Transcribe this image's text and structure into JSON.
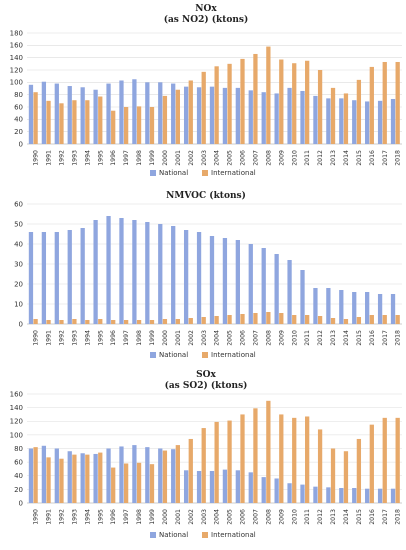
{
  "chart_data": [
    {
      "type": "bar",
      "title": "NOx",
      "subtitle": "(as NO2) (ktons)",
      "xlabel": "",
      "ylabel": "",
      "ylim": [
        0,
        180
      ],
      "yticks": [
        0,
        20,
        40,
        60,
        80,
        100,
        120,
        140,
        160,
        180
      ],
      "grid": true,
      "legend": "bottom",
      "categories": [
        "1990",
        "1991",
        "1992",
        "1993",
        "1994",
        "1995",
        "1996",
        "1997",
        "1998",
        "1999",
        "2000",
        "2001",
        "2002",
        "2003",
        "2004",
        "2005",
        "2006",
        "2007",
        "2008",
        "2009",
        "2010",
        "2011",
        "2012",
        "2013",
        "2014",
        "2015",
        "2016",
        "2017",
        "2018"
      ],
      "series": [
        {
          "name": "National",
          "color": "#8fa6df",
          "values": [
            96,
            101,
            98,
            94,
            92,
            88,
            98,
            103,
            105,
            100,
            100,
            98,
            93,
            92,
            93,
            91,
            91,
            87,
            84,
            82,
            91,
            86,
            78,
            74,
            74,
            71,
            69,
            70,
            73
          ]
        },
        {
          "name": "International",
          "color": "#e7a96a",
          "values": [
            84,
            70,
            66,
            71,
            71,
            77,
            54,
            60,
            61,
            60,
            78,
            88,
            103,
            117,
            126,
            130,
            138,
            146,
            158,
            137,
            131,
            135,
            120,
            91,
            82,
            104,
            125,
            133,
            133
          ]
        }
      ]
    },
    {
      "type": "bar",
      "title": "NMVOC (ktons)",
      "subtitle": "",
      "xlabel": "",
      "ylabel": "",
      "ylim": [
        0,
        60
      ],
      "yticks": [
        0,
        10,
        20,
        30,
        40,
        50,
        60
      ],
      "grid": true,
      "legend": "bottom",
      "categories": [
        "1990",
        "1991",
        "1992",
        "1993",
        "1994",
        "1995",
        "1996",
        "1997",
        "1998",
        "1999",
        "2000",
        "2001",
        "2002",
        "2003",
        "2004",
        "2005",
        "2006",
        "2007",
        "2008",
        "2009",
        "2010",
        "2011",
        "2012",
        "2013",
        "2014",
        "2015",
        "2016",
        "2017",
        "2018"
      ],
      "series": [
        {
          "name": "National",
          "color": "#8fa6df",
          "values": [
            46,
            46,
            46,
            47,
            48,
            52,
            54,
            53,
            52,
            51,
            50,
            49,
            47,
            46,
            44,
            43,
            42,
            40,
            38,
            35,
            32,
            27,
            18,
            18,
            17,
            16,
            16,
            15,
            15
          ]
        },
        {
          "name": "International",
          "color": "#e7a96a",
          "values": [
            2.5,
            2,
            2,
            2.5,
            2,
            2.5,
            2,
            2,
            2,
            2,
            2.5,
            2.5,
            3,
            3.5,
            4,
            4.5,
            5,
            5.5,
            6,
            5.5,
            4.5,
            4.5,
            4,
            3,
            2.5,
            3.5,
            4.5,
            4.5,
            4.5
          ]
        }
      ]
    },
    {
      "type": "bar",
      "title": "SOx",
      "subtitle": "(as SO2) (ktons)",
      "xlabel": "",
      "ylabel": "",
      "ylim": [
        0,
        160
      ],
      "yticks": [
        0,
        20,
        40,
        60,
        80,
        100,
        120,
        140,
        160
      ],
      "grid": true,
      "legend": "bottom",
      "categories": [
        "1990",
        "1991",
        "1992",
        "1993",
        "1994",
        "1995",
        "1996",
        "1997",
        "1998",
        "1999",
        "2000",
        "2001",
        "2002",
        "2003",
        "2004",
        "2005",
        "2006",
        "2007",
        "2008",
        "2009",
        "2010",
        "2011",
        "2012",
        "2013",
        "2014",
        "2015",
        "2016",
        "2017",
        "2018"
      ],
      "series": [
        {
          "name": "National",
          "color": "#8fa6df",
          "values": [
            80,
            84,
            80,
            76,
            73,
            72,
            80,
            83,
            85,
            82,
            80,
            79,
            48,
            47,
            47,
            49,
            48,
            45,
            38,
            36,
            29,
            27,
            24,
            23,
            22,
            22,
            21,
            21,
            21
          ]
        },
        {
          "name": "International",
          "color": "#e7a96a",
          "values": [
            82,
            67,
            65,
            71,
            71,
            74,
            52,
            58,
            59,
            57,
            77,
            85,
            94,
            110,
            119,
            121,
            130,
            139,
            150,
            130,
            125,
            127,
            108,
            80,
            76,
            94,
            115,
            125,
            125
          ]
        }
      ]
    }
  ]
}
